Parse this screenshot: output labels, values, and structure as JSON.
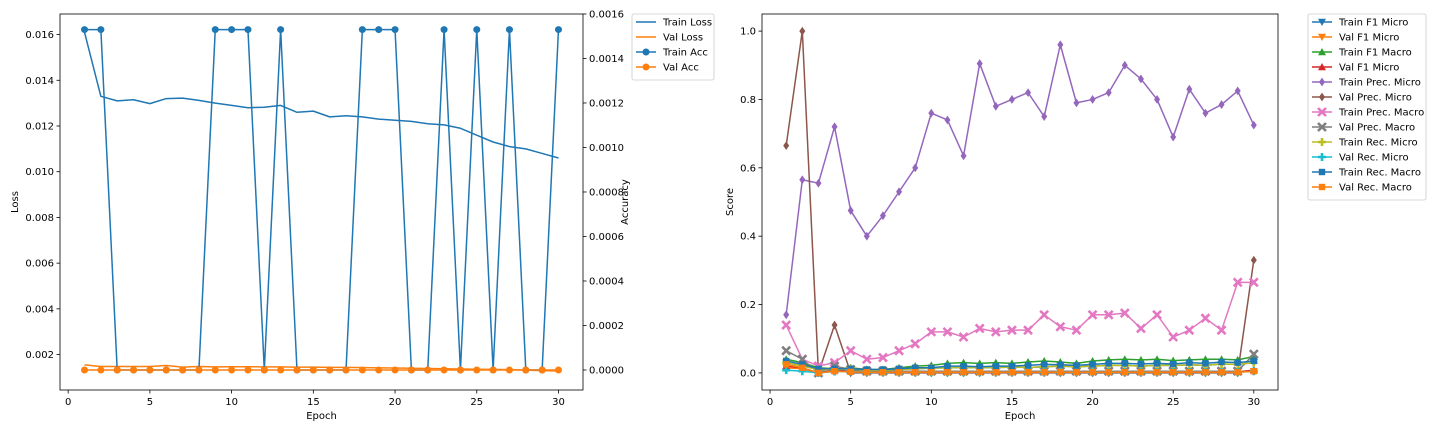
{
  "chart_data": [
    {
      "type": "line",
      "title": "",
      "xlabel": "Epoch",
      "ylabel": "Loss",
      "y2label": "Accuracy",
      "xlim": [
        -0.5,
        31.5
      ],
      "ylim": [
        0.00045,
        0.0169
      ],
      "y2lim": [
        -9e-05,
        0.0016
      ],
      "xticks": [
        "0",
        "5",
        "10",
        "15",
        "20",
        "25",
        "30"
      ],
      "yticks": [
        "0.002",
        "0.004",
        "0.006",
        "0.008",
        "0.010",
        "0.012",
        "0.014",
        "0.016"
      ],
      "y2ticks": [
        "0.0000",
        "0.0002",
        "0.0004",
        "0.0006",
        "0.0008",
        "0.0010",
        "0.0012",
        "0.0014",
        "0.0016"
      ],
      "legend_position": "outside-right",
      "x": [
        1,
        2,
        3,
        4,
        5,
        6,
        7,
        8,
        9,
        10,
        11,
        12,
        13,
        14,
        15,
        16,
        17,
        18,
        19,
        20,
        21,
        22,
        23,
        24,
        25,
        26,
        27,
        28,
        29,
        30
      ],
      "series": [
        {
          "name": "Train Loss",
          "axis": "left",
          "marker": "none",
          "color": "#1f77b4",
          "values": [
            0.0161,
            0.0133,
            0.0131,
            0.01315,
            0.01298,
            0.0132,
            0.01322,
            0.01312,
            0.013,
            0.0129,
            0.0128,
            0.01282,
            0.0129,
            0.0126,
            0.01265,
            0.0124,
            0.01245,
            0.0124,
            0.0123,
            0.01225,
            0.0122,
            0.0121,
            0.01205,
            0.0119,
            0.0116,
            0.0113,
            0.0111,
            0.011,
            0.0108,
            0.0106
          ]
        },
        {
          "name": "Val Loss",
          "axis": "left",
          "marker": "none",
          "color": "#ff7f0e",
          "values": [
            0.00155,
            0.00148,
            0.00148,
            0.00148,
            0.00148,
            0.00152,
            0.00145,
            0.00148,
            0.00146,
            0.00147,
            0.00147,
            0.00146,
            0.00146,
            0.00145,
            0.00145,
            0.00144,
            0.00144,
            0.00143,
            0.00142,
            0.00141,
            0.0014,
            0.00139,
            0.00138,
            0.00137,
            0.00136,
            0.00135,
            0.00134,
            0.00132,
            0.0013,
            0.00128
          ]
        },
        {
          "name": "Train Acc",
          "axis": "right",
          "marker": "circle",
          "color": "#1f77b4",
          "values": [
            0.00153,
            0.00153,
            0,
            0,
            0,
            0,
            0,
            0,
            0.00153,
            0.00153,
            0.00153,
            0,
            0.00153,
            0,
            0,
            0,
            0,
            0.00153,
            0.00153,
            0.00153,
            0,
            0,
            0.00153,
            0,
            0.00153,
            0,
            0.00153,
            0,
            0,
            0.00153
          ]
        },
        {
          "name": "Val Acc",
          "axis": "right",
          "marker": "circle",
          "color": "#ff7f0e",
          "values": [
            0,
            0,
            0,
            0,
            0,
            0,
            0,
            0,
            0,
            0,
            0,
            0,
            0,
            0,
            0,
            0,
            0,
            0,
            0,
            0,
            0,
            0,
            0,
            0,
            0,
            0,
            0,
            0,
            0,
            0
          ]
        }
      ]
    },
    {
      "type": "line",
      "title": "",
      "xlabel": "Epoch",
      "ylabel": "Score",
      "xlim": [
        -0.5,
        31.5
      ],
      "ylim": [
        -0.05,
        1.05
      ],
      "xticks": [
        "0",
        "5",
        "10",
        "15",
        "20",
        "25",
        "30"
      ],
      "yticks": [
        "0.0",
        "0.2",
        "0.4",
        "0.6",
        "0.8",
        "1.0"
      ],
      "legend_position": "outside-right",
      "x": [
        1,
        2,
        3,
        4,
        5,
        6,
        7,
        8,
        9,
        10,
        11,
        12,
        13,
        14,
        15,
        16,
        17,
        18,
        19,
        20,
        21,
        22,
        23,
        24,
        25,
        26,
        27,
        28,
        29,
        30
      ],
      "series": [
        {
          "name": "Train F1 Micro",
          "marker": "triangle-down",
          "color": "#1f77b4",
          "values": [
            0.03,
            0.02,
            0.01,
            0.01,
            0.012,
            0.008,
            0.008,
            0.01,
            0.012,
            0.014,
            0.015,
            0.016,
            0.015,
            0.016,
            0.017,
            0.016,
            0.018,
            0.02,
            0.018,
            0.02,
            0.022,
            0.022,
            0.02,
            0.022,
            0.022,
            0.024,
            0.022,
            0.026,
            0.025,
            0.03
          ]
        },
        {
          "name": "Val F1 Micro",
          "marker": "triangle-down",
          "color": "#ff7f0e",
          "values": [
            0.015,
            0.012,
            0,
            0.005,
            0.005,
            0.003,
            0.002,
            0.002,
            0.002,
            0.002,
            0.002,
            0.002,
            0.002,
            0.002,
            0.002,
            0.002,
            0.002,
            0.002,
            0.002,
            0.002,
            0.002,
            0.002,
            0.002,
            0.002,
            0.002,
            0.002,
            0.002,
            0.002,
            0.002,
            0.005
          ]
        },
        {
          "name": "Train F1 Macro",
          "marker": "triangle-up",
          "color": "#2ca02c",
          "values": [
            0.04,
            0.03,
            0.015,
            0.012,
            0.015,
            0.01,
            0.01,
            0.015,
            0.02,
            0.022,
            0.028,
            0.03,
            0.028,
            0.03,
            0.028,
            0.032,
            0.035,
            0.032,
            0.028,
            0.035,
            0.038,
            0.04,
            0.038,
            0.04,
            0.036,
            0.038,
            0.04,
            0.04,
            0.038,
            0.048
          ]
        },
        {
          "name": "Val F1 Micro",
          "marker": "triangle-up",
          "color": "#d62728",
          "values": [
            0.02,
            0.015,
            0,
            0.008,
            0.005,
            0.003,
            0.003,
            0.003,
            0.003,
            0.003,
            0.003,
            0.003,
            0.003,
            0.003,
            0.003,
            0.003,
            0.003,
            0.003,
            0.003,
            0.003,
            0.003,
            0.003,
            0.003,
            0.003,
            0.003,
            0.003,
            0.003,
            0.003,
            0.003,
            0.008
          ]
        },
        {
          "name": "Train Prec. Micro",
          "marker": "diamond",
          "color": "#9467bd",
          "values": [
            0.17,
            0.565,
            0.555,
            0.72,
            0.475,
            0.4,
            0.46,
            0.53,
            0.6,
            0.76,
            0.74,
            0.635,
            0.905,
            0.78,
            0.8,
            0.82,
            0.75,
            0.96,
            0.79,
            0.8,
            0.82,
            0.9,
            0.86,
            0.8,
            0.69,
            0.83,
            0.76,
            0.785,
            0.825,
            0.725
          ]
        },
        {
          "name": "Val Prec. Micro",
          "marker": "diamond",
          "color": "#8c564b",
          "values": [
            0.665,
            1.0,
            0,
            0.14,
            0,
            0,
            0,
            0,
            0,
            0,
            0,
            0,
            0,
            0,
            0,
            0,
            0,
            0,
            0,
            0,
            0,
            0,
            0,
            0,
            0,
            0,
            0,
            0,
            0,
            0.33
          ]
        },
        {
          "name": "Train Prec. Macro",
          "marker": "x-filled",
          "color": "#e377c2",
          "values": [
            0.14,
            0.04,
            0.02,
            0.03,
            0.065,
            0.04,
            0.045,
            0.065,
            0.085,
            0.12,
            0.12,
            0.105,
            0.13,
            0.12,
            0.125,
            0.125,
            0.17,
            0.135,
            0.125,
            0.17,
            0.17,
            0.175,
            0.13,
            0.17,
            0.105,
            0.125,
            0.16,
            0.125,
            0.265,
            0.265
          ]
        },
        {
          "name": "Val Prec. Macro",
          "marker": "x-filled",
          "color": "#7f7f7f",
          "values": [
            0.065,
            0.04,
            0,
            0.02,
            0.01,
            0.005,
            0.005,
            0.005,
            0.005,
            0.005,
            0.005,
            0.005,
            0.005,
            0.005,
            0.005,
            0.005,
            0.005,
            0.005,
            0.005,
            0.005,
            0.005,
            0.005,
            0.005,
            0.005,
            0.005,
            0.005,
            0.005,
            0.005,
            0.005,
            0.055
          ]
        },
        {
          "name": "Train Rec. Micro",
          "marker": "plus-filled",
          "color": "#bcbd22",
          "values": [
            0.03,
            0.02,
            0.01,
            0.01,
            0.012,
            0.008,
            0.008,
            0.01,
            0.012,
            0.014,
            0.015,
            0.016,
            0.015,
            0.016,
            0.017,
            0.016,
            0.018,
            0.02,
            0.018,
            0.02,
            0.022,
            0.022,
            0.02,
            0.022,
            0.022,
            0.024,
            0.022,
            0.026,
            0.025,
            0.03
          ]
        },
        {
          "name": "Val Rec. Micro",
          "marker": "plus-filled",
          "color": "#17becf",
          "values": [
            0.008,
            0.005,
            0,
            0.004,
            0.004,
            0.002,
            0.002,
            0.002,
            0.002,
            0.002,
            0.002,
            0.002,
            0.002,
            0.002,
            0.002,
            0.002,
            0.002,
            0.002,
            0.002,
            0.002,
            0.002,
            0.002,
            0.002,
            0.002,
            0.002,
            0.002,
            0.002,
            0.002,
            0.002,
            0.005
          ]
        },
        {
          "name": "Train Rec. Macro",
          "marker": "square",
          "color": "#1f77b4",
          "values": [
            0.035,
            0.025,
            0.012,
            0.012,
            0.012,
            0.01,
            0.01,
            0.012,
            0.015,
            0.015,
            0.02,
            0.02,
            0.018,
            0.02,
            0.02,
            0.022,
            0.025,
            0.024,
            0.022,
            0.025,
            0.028,
            0.028,
            0.026,
            0.028,
            0.026,
            0.03,
            0.028,
            0.032,
            0.03,
            0.035
          ]
        },
        {
          "name": "Val Rec. Macro",
          "marker": "square",
          "color": "#ff7f0e",
          "values": [
            0.025,
            0.015,
            0,
            0.005,
            0.003,
            0.002,
            0.002,
            0.002,
            0.002,
            0.002,
            0.002,
            0.002,
            0.002,
            0.002,
            0.002,
            0.002,
            0.002,
            0.002,
            0.002,
            0.002,
            0.002,
            0.002,
            0.002,
            0.002,
            0.002,
            0.002,
            0.002,
            0.002,
            0.002,
            0.005
          ]
        }
      ]
    }
  ]
}
